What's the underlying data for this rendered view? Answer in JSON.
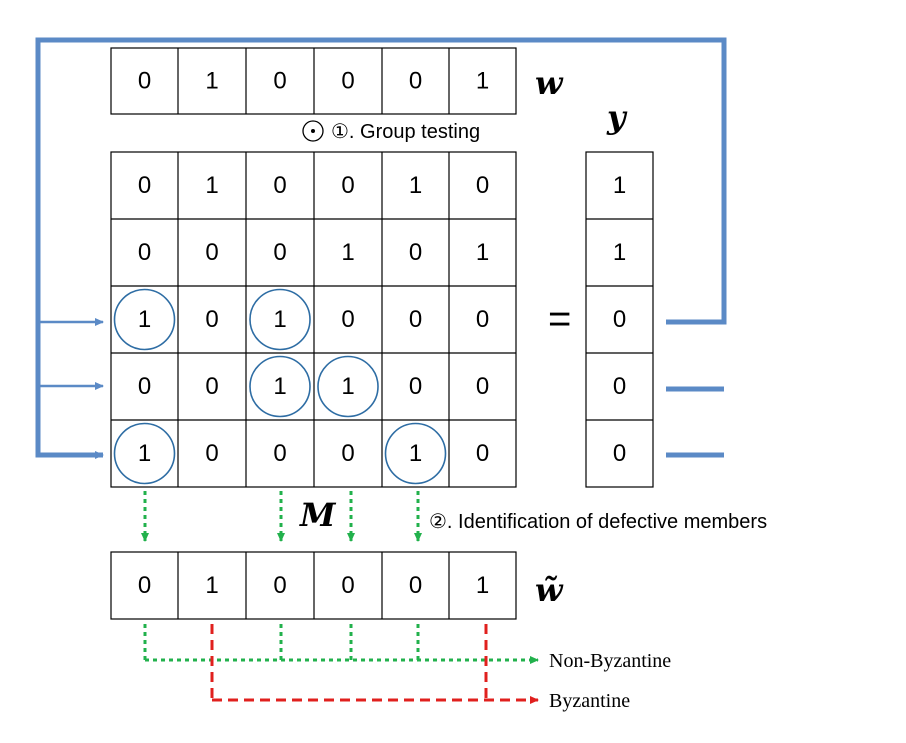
{
  "vectors": {
    "w": {
      "label": "w",
      "values": [
        0,
        1,
        0,
        0,
        0,
        1
      ]
    },
    "y": {
      "label": "y",
      "values": [
        1,
        1,
        0,
        0,
        0
      ]
    },
    "w_tilde": {
      "label": "w̃",
      "values": [
        0,
        1,
        0,
        0,
        0,
        1
      ]
    }
  },
  "matrix": {
    "label": "M",
    "rows": [
      [
        0,
        1,
        0,
        0,
        1,
        0
      ],
      [
        0,
        0,
        0,
        1,
        0,
        1
      ],
      [
        1,
        0,
        1,
        0,
        0,
        0
      ],
      [
        0,
        0,
        1,
        1,
        0,
        0
      ],
      [
        1,
        0,
        0,
        0,
        1,
        0
      ]
    ],
    "circled": [
      [
        2,
        0
      ],
      [
        2,
        2
      ],
      [
        3,
        2
      ],
      [
        3,
        3
      ],
      [
        4,
        0
      ],
      [
        4,
        4
      ]
    ]
  },
  "symbols": {
    "equals": "=",
    "odot": "⊙"
  },
  "steps": {
    "group_testing": "①. Group testing",
    "identification": "②. Identification of defective members"
  },
  "outputs": {
    "non_byzantine": "Non-Byzantine",
    "byzantine": "Byzantine"
  },
  "colors": {
    "feedback": "#5b8ac6",
    "circle": "#2e6da4",
    "green_arrow": "#22b14c",
    "red_arrow": "#e0201e"
  }
}
